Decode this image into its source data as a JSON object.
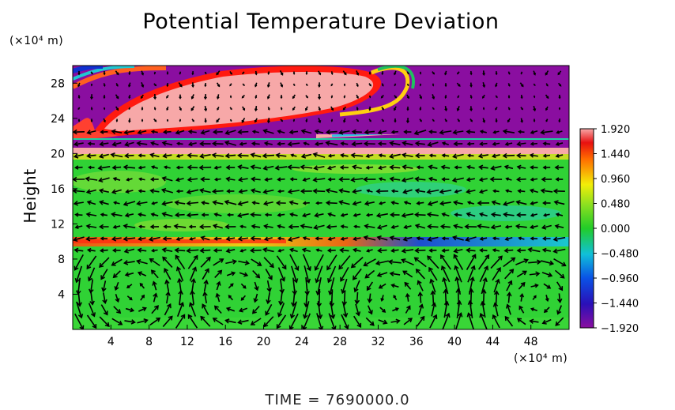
{
  "title": "Potential Temperature Deviation",
  "y_unit_label": "(×10⁴ m)",
  "x_unit_label": "(×10⁴ m)",
  "ylabel": "Height",
  "footer": "TIME  =  7690000.0",
  "chart_data": {
    "type": "heatmap",
    "title": "Potential Temperature Deviation",
    "xlabel": "",
    "ylabel": "Height",
    "x_unit": "(×10⁴ m)",
    "y_unit": "(×10⁴ m)",
    "xlim": [
      0,
      52
    ],
    "ylim": [
      0,
      30
    ],
    "x_ticks": [
      4,
      8,
      12,
      16,
      20,
      24,
      28,
      32,
      36,
      40,
      44,
      48
    ],
    "y_ticks": [
      4,
      8,
      12,
      16,
      20,
      24,
      28
    ],
    "colorbar": {
      "min": -1.92,
      "max": 1.92,
      "labels": [
        "1.920",
        "1.440",
        "0.960",
        "0.480",
        "0.000",
        "−0.480",
        "−0.960",
        "−1.440",
        "−1.920"
      ],
      "values": [
        1.92,
        1.44,
        0.96,
        0.48,
        0.0,
        -0.48,
        -0.96,
        -1.44,
        -1.92
      ]
    },
    "overlay": "wind vector arrows",
    "time": "7690000.0"
  }
}
